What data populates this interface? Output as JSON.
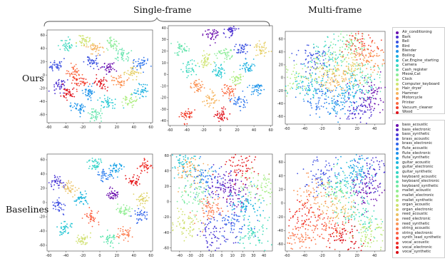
{
  "headers": {
    "single_frame": "Single-frame",
    "multi_frame": "Multi-frame"
  },
  "row_labels": {
    "top": "Ours",
    "bottom": "Baselines"
  },
  "legend_top": [
    {
      "label": "Air_conditioning",
      "color": "#6a0dad"
    },
    {
      "label": "Bark",
      "color": "#4b2fd0"
    },
    {
      "label": "Bell",
      "color": "#3a50e0"
    },
    {
      "label": "Bird",
      "color": "#2c73ec"
    },
    {
      "label": "Blender",
      "color": "#1f94ea"
    },
    {
      "label": "Boiling",
      "color": "#1cb0e0"
    },
    {
      "label": "Car,Engine_starting",
      "color": "#22c8d2"
    },
    {
      "label": "Camera",
      "color": "#40d9c0"
    },
    {
      "label": "Cash_register",
      "color": "#66e4ad"
    },
    {
      "label": "Meow,Cat",
      "color": "#8cec98"
    },
    {
      "label": "Clock",
      "color": "#b0ee84"
    },
    {
      "label": "Computer_keyboard",
      "color": "#cfe470"
    },
    {
      "label": "Hair_dryer",
      "color": "#e6cf66"
    },
    {
      "label": "Hammer",
      "color": "#f5b35c"
    },
    {
      "label": "Motorcycle",
      "color": "#fb9050"
    },
    {
      "label": "Printer",
      "color": "#fb6a40"
    },
    {
      "label": "Vacuum_cleaner",
      "color": "#f23e2c"
    },
    {
      "label": "Wood",
      "color": "#e0121c"
    }
  ],
  "legend_bottom": [
    {
      "label": "bass_acoustic",
      "color": "#6a0dad"
    },
    {
      "label": "bass_electronic",
      "color": "#5a22c4"
    },
    {
      "label": "bass_synthetic",
      "color": "#4a37d5"
    },
    {
      "label": "brass_acoustic",
      "color": "#3d4de2"
    },
    {
      "label": "brass_electronic",
      "color": "#3063ea"
    },
    {
      "label": "flute_acoustic",
      "color": "#2679ee"
    },
    {
      "label": "flute_electronic",
      "color": "#1e8fec"
    },
    {
      "label": "flute_synthetic",
      "color": "#1aa3e6"
    },
    {
      "label": "guitar_acoustic",
      "color": "#1cb5dd"
    },
    {
      "label": "guitar_electronic",
      "color": "#24c5d3"
    },
    {
      "label": "guitar_synthetic",
      "color": "#33d3c7"
    },
    {
      "label": "keyboard_acoustic",
      "color": "#47ddbb"
    },
    {
      "label": "keyboard_electronic",
      "color": "#5ee5ad"
    },
    {
      "label": "keyboard_synthetic",
      "color": "#76ea9e"
    },
    {
      "label": "mallet_acoustic",
      "color": "#8eed90"
    },
    {
      "label": "mallet_electronic",
      "color": "#a6ed84"
    },
    {
      "label": "mallet_synthetic",
      "color": "#bce978"
    },
    {
      "label": "organ_acoustic",
      "color": "#cfe06e"
    },
    {
      "label": "organ_electronic",
      "color": "#ded267"
    },
    {
      "label": "reed_acoustic",
      "color": "#eac062"
    },
    {
      "label": "reed_electronic",
      "color": "#f3ab5c"
    },
    {
      "label": "reed_synthetic",
      "color": "#f99455"
    },
    {
      "label": "string_acoustic",
      "color": "#fc7b4d"
    },
    {
      "label": "string_electronic",
      "color": "#fc6243"
    },
    {
      "label": "synth_lead_synthetic",
      "color": "#f84837"
    },
    {
      "label": "vocal_acoustic",
      "color": "#f02f29"
    },
    {
      "label": "vocal_electronic",
      "color": "#e51a1d"
    },
    {
      "label": "vocal_synthetic",
      "color": "#d90b14"
    }
  ],
  "chart_data": [
    {
      "type": "scatter",
      "panel": "ours-single-1",
      "xlim": [
        -62,
        62
      ],
      "ylim": [
        -72,
        68
      ],
      "xticks": [
        "-60",
        "-40",
        "-20",
        "0",
        "20",
        "40",
        "60"
      ],
      "yticks": [
        "60",
        "40",
        "20",
        "0",
        "-20",
        "-40",
        "-60"
      ],
      "clusters": [
        {
          "x": -52,
          "y": 15,
          "c": 2
        },
        {
          "x": -38,
          "y": 44,
          "c": 7
        },
        {
          "x": -18,
          "y": 52,
          "c": 11
        },
        {
          "x": -6,
          "y": 40,
          "c": 13
        },
        {
          "x": 15,
          "y": 48,
          "c": 9
        },
        {
          "x": -48,
          "y": -16,
          "c": 1
        },
        {
          "x": -30,
          "y": 5,
          "c": 15
        },
        {
          "x": -24,
          "y": -10,
          "c": 16
        },
        {
          "x": -36,
          "y": -28,
          "c": 17
        },
        {
          "x": -14,
          "y": -26,
          "c": 4
        },
        {
          "x": 10,
          "y": 12,
          "c": 0
        },
        {
          "x": 22,
          "y": -8,
          "c": 14
        },
        {
          "x": 38,
          "y": 4,
          "c": 12
        },
        {
          "x": 48,
          "y": 18,
          "c": 3
        },
        {
          "x": 50,
          "y": -24,
          "c": 5
        },
        {
          "x": 35,
          "y": -38,
          "c": 10
        },
        {
          "x": 8,
          "y": -42,
          "c": 6
        },
        {
          "x": -5,
          "y": -60,
          "c": 8
        },
        {
          "x": -26,
          "y": -48,
          "c": 4
        },
        {
          "x": 26,
          "y": 30,
          "c": 8
        },
        {
          "x": -8,
          "y": 20,
          "c": 2
        },
        {
          "x": 2,
          "y": -12,
          "c": 17
        }
      ]
    },
    {
      "type": "scatter",
      "panel": "ours-single-2",
      "xlim": [
        -62,
        62
      ],
      "ylim": [
        -44,
        42
      ],
      "xticks": [
        "-60",
        "-40",
        "-20",
        "0",
        "20",
        "40",
        "60"
      ],
      "yticks": [
        "40",
        "30",
        "20",
        "10",
        "0",
        "-10",
        "-20",
        "-30",
        "-40"
      ],
      "clusters": [
        {
          "x": -35,
          "y": 5,
          "c": 7
        },
        {
          "x": -30,
          "y": -10,
          "c": 14
        },
        {
          "x": -12,
          "y": -22,
          "c": 13
        },
        {
          "x": -40,
          "y": -35,
          "c": 16
        },
        {
          "x": -10,
          "y": 34,
          "c": 0
        },
        {
          "x": 12,
          "y": 38,
          "c": 1
        },
        {
          "x": 25,
          "y": 22,
          "c": 2
        },
        {
          "x": 6,
          "y": 18,
          "c": 9
        },
        {
          "x": -18,
          "y": 12,
          "c": 11
        },
        {
          "x": 32,
          "y": 6,
          "c": 5
        },
        {
          "x": 42,
          "y": -12,
          "c": 4
        },
        {
          "x": 20,
          "y": -4,
          "c": 10
        },
        {
          "x": 22,
          "y": -24,
          "c": 3
        },
        {
          "x": 0,
          "y": -36,
          "c": 17
        },
        {
          "x": -2,
          "y": 2,
          "c": 6
        },
        {
          "x": 48,
          "y": 22,
          "c": 12
        },
        {
          "x": -45,
          "y": 22,
          "c": 8
        },
        {
          "x": 10,
          "y": -14,
          "c": 15
        }
      ]
    },
    {
      "type": "scatter",
      "panel": "ours-multi",
      "xlim": [
        -62,
        52
      ],
      "ylim": [
        -72,
        72
      ],
      "xticks": [
        "-60",
        "-40",
        "-20",
        "0",
        "20",
        "40"
      ],
      "yticks": [
        "60",
        "40",
        "20",
        "0",
        "-20",
        "-40",
        "-60"
      ],
      "clusters": [
        {
          "x": -55,
          "y": 0,
          "c": 10
        },
        {
          "x": -30,
          "y": 30,
          "c": 2
        },
        {
          "x": -20,
          "y": 10,
          "c": 11
        },
        {
          "x": -10,
          "y": 40,
          "c": 7
        },
        {
          "x": 10,
          "y": 50,
          "c": 9
        },
        {
          "x": 25,
          "y": 55,
          "c": 16
        },
        {
          "x": 35,
          "y": 30,
          "c": 14
        },
        {
          "x": 30,
          "y": 0,
          "c": 8
        },
        {
          "x": 15,
          "y": -20,
          "c": 5
        },
        {
          "x": 0,
          "y": -40,
          "c": 4
        },
        {
          "x": -25,
          "y": -30,
          "c": 3
        },
        {
          "x": -35,
          "y": -10,
          "c": 6
        },
        {
          "x": 38,
          "y": -30,
          "c": 0
        },
        {
          "x": 10,
          "y": 15,
          "c": 12
        },
        {
          "x": -5,
          "y": -5,
          "c": 13
        },
        {
          "x": 20,
          "y": -50,
          "c": 1
        }
      ]
    },
    {
      "type": "scatter",
      "panel": "baseline-single-1",
      "xlim": [
        -62,
        62
      ],
      "ylim": [
        -68,
        68
      ],
      "xticks": [
        "-60",
        "-40",
        "-20",
        "0",
        "20",
        "40",
        "60"
      ],
      "yticks": [
        "60",
        "40",
        "20",
        "0",
        "-20",
        "-40",
        "-60"
      ],
      "clusters": [
        {
          "x": -48,
          "y": -5,
          "c": 3
        },
        {
          "x": -40,
          "y": -36,
          "c": 9
        },
        {
          "x": -36,
          "y": 20,
          "c": 19
        },
        {
          "x": -22,
          "y": 5,
          "c": 8
        },
        {
          "x": -10,
          "y": -20,
          "c": 23
        },
        {
          "x": 5,
          "y": 38,
          "c": 5
        },
        {
          "x": -5,
          "y": 55,
          "c": 10
        },
        {
          "x": 15,
          "y": 10,
          "c": 0
        },
        {
          "x": 28,
          "y": -10,
          "c": 14
        },
        {
          "x": 40,
          "y": 30,
          "c": 26
        },
        {
          "x": 52,
          "y": 52,
          "c": 25
        },
        {
          "x": 48,
          "y": -20,
          "c": 4
        },
        {
          "x": 30,
          "y": -44,
          "c": 22
        },
        {
          "x": 10,
          "y": -50,
          "c": 12
        },
        {
          "x": -20,
          "y": -52,
          "c": 17
        },
        {
          "x": 20,
          "y": 48,
          "c": 7
        },
        {
          "x": -50,
          "y": 28,
          "c": 2
        },
        {
          "x": 50,
          "y": 5,
          "c": 18
        }
      ]
    },
    {
      "type": "scatter",
      "panel": "baseline-single-2",
      "xlim": [
        -48,
        48
      ],
      "ylim": [
        -64,
        62
      ],
      "xticks": [
        "-40",
        "-30",
        "-20",
        "-10",
        "0",
        "10",
        "20",
        "30",
        "40"
      ],
      "yticks": [
        "60",
        "40",
        "20",
        "0",
        "-20",
        "-40",
        "-60"
      ],
      "clusters": [
        {
          "x": -30,
          "y": 40,
          "c": 20
        },
        {
          "x": -15,
          "y": 30,
          "c": 5
        },
        {
          "x": 0,
          "y": 20,
          "c": 1
        },
        {
          "x": 15,
          "y": 10,
          "c": 0
        },
        {
          "x": 25,
          "y": -5,
          "c": 8
        },
        {
          "x": -25,
          "y": 10,
          "c": 13
        },
        {
          "x": -10,
          "y": -10,
          "c": 22
        },
        {
          "x": 10,
          "y": -25,
          "c": 4
        },
        {
          "x": 30,
          "y": -40,
          "c": 11
        },
        {
          "x": -35,
          "y": -30,
          "c": 17
        },
        {
          "x": 20,
          "y": 45,
          "c": 26
        },
        {
          "x": -5,
          "y": -45,
          "c": 2
        },
        {
          "x": 35,
          "y": 20,
          "c": 15
        },
        {
          "x": -40,
          "y": 55,
          "c": 9
        }
      ]
    },
    {
      "type": "scatter",
      "panel": "baseline-multi",
      "xlim": [
        -62,
        52
      ],
      "ylim": [
        -70,
        72
      ],
      "xticks": [
        "-60",
        "-40",
        "-20",
        "0",
        "20",
        "40"
      ],
      "yticks": [
        "60",
        "40",
        "20",
        "0",
        "-20",
        "-40",
        "-60"
      ],
      "clusters": [
        {
          "x": -40,
          "y": -20,
          "c": 25
        },
        {
          "x": -30,
          "y": 10,
          "c": 21
        },
        {
          "x": -15,
          "y": -40,
          "c": 23
        },
        {
          "x": 0,
          "y": -10,
          "c": 19
        },
        {
          "x": 10,
          "y": 30,
          "c": 9
        },
        {
          "x": 20,
          "y": 50,
          "c": 7
        },
        {
          "x": 30,
          "y": 20,
          "c": 0
        },
        {
          "x": 25,
          "y": -20,
          "c": 11
        },
        {
          "x": -5,
          "y": 20,
          "c": 13
        },
        {
          "x": -20,
          "y": 40,
          "c": 3
        },
        {
          "x": 35,
          "y": -45,
          "c": 16
        },
        {
          "x": 5,
          "y": -50,
          "c": 27
        },
        {
          "x": -45,
          "y": -50,
          "c": 22
        },
        {
          "x": 40,
          "y": 45,
          "c": 2
        }
      ]
    }
  ]
}
